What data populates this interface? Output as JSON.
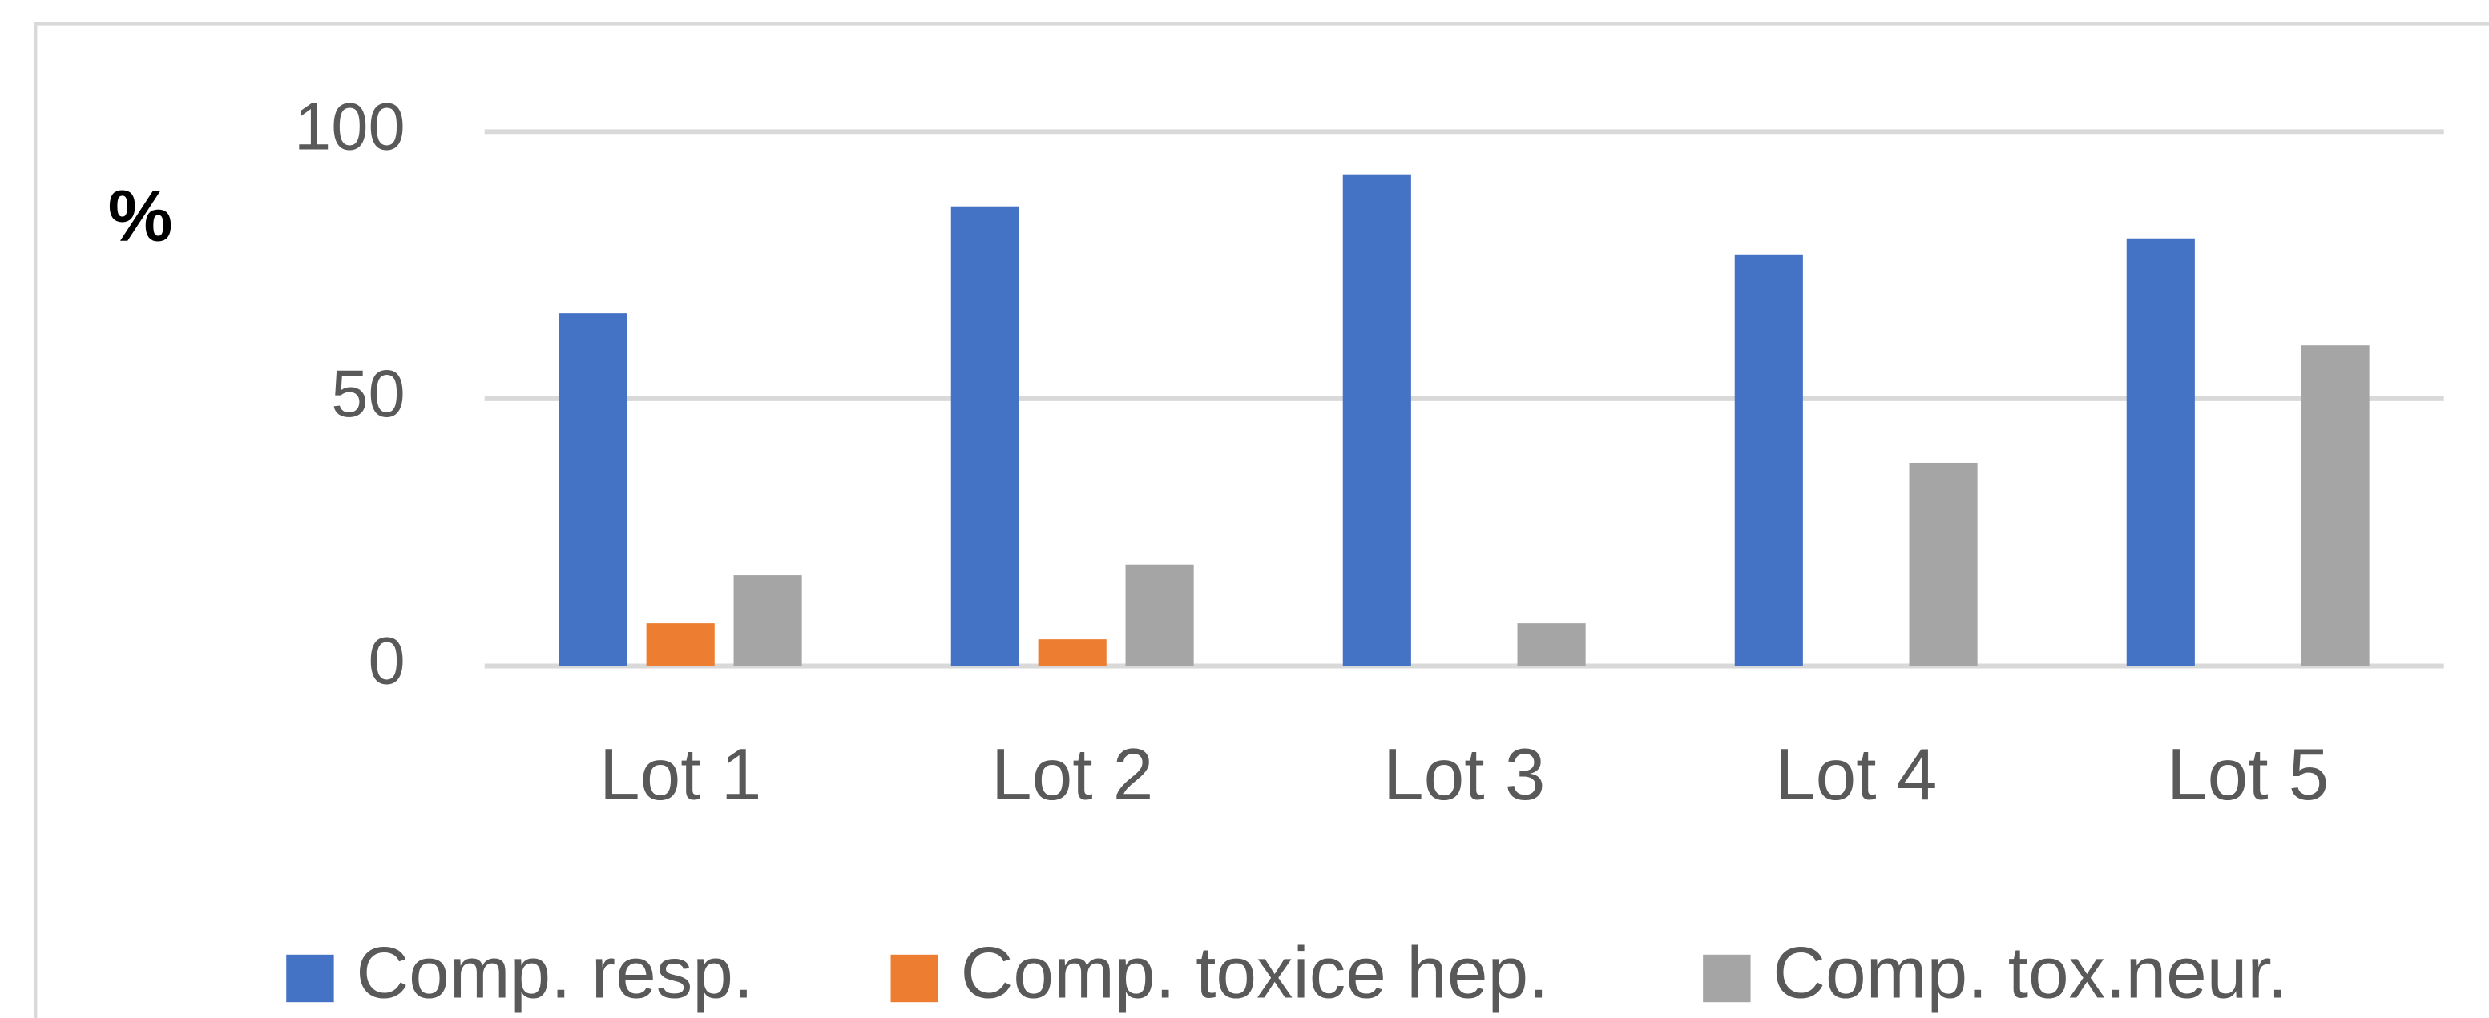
{
  "chart_data": {
    "type": "bar",
    "y_label": "%",
    "categories": [
      "Lot 1",
      "Lot 2",
      "Lot 3",
      "Lot 4",
      "Lot 5"
    ],
    "series": [
      {
        "name": "Comp. resp.",
        "color": "#4472c4",
        "values": [
          66,
          86,
          92,
          77,
          80
        ]
      },
      {
        "name": "Comp. toxice hep.",
        "color": "#ed7d31",
        "values": [
          8,
          5,
          0,
          0,
          0
        ]
      },
      {
        "name": "Comp. tox.neur.",
        "color": "#a5a5a5",
        "values": [
          17,
          19,
          8,
          38,
          60
        ]
      }
    ],
    "ylim": [
      0,
      100
    ],
    "yticks": [
      0,
      50,
      100
    ],
    "grid": true,
    "legend": "bottom"
  }
}
